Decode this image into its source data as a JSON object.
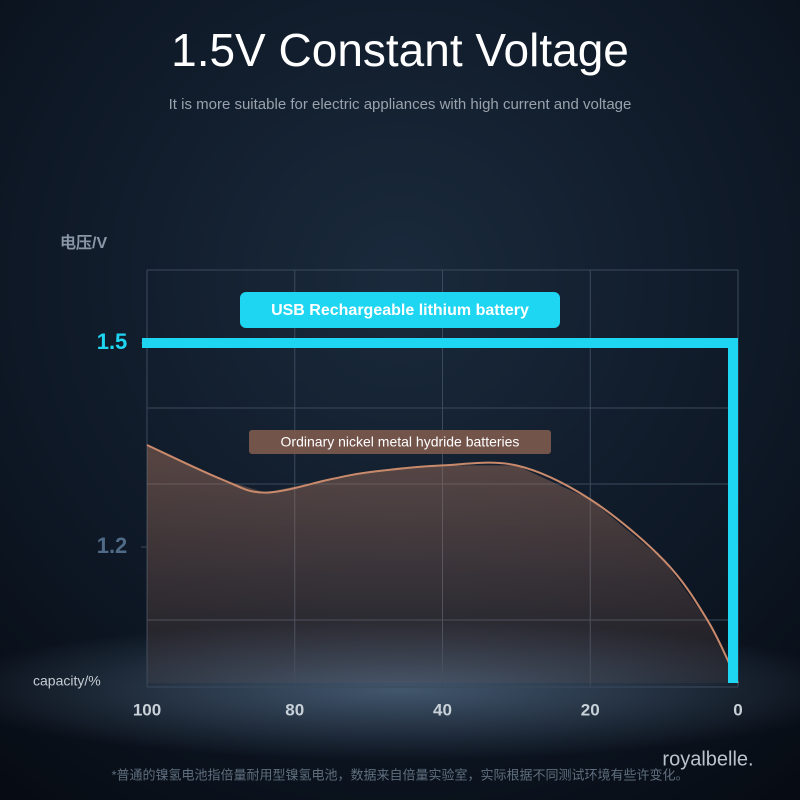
{
  "chart_data": {
    "type": "line",
    "title": "1.5V Constant Voltage",
    "subtitle": "It is more suitable for electric appliances with high current and voltage",
    "y_label": "电压/V",
    "x_label": "capacity/%",
    "xlim": [
      100,
      0
    ],
    "xticks": [
      100,
      80,
      40,
      20,
      0
    ],
    "ylim": [
      1.0,
      1.6
    ],
    "yticks": [
      1.2,
      1.5
    ],
    "series": [
      {
        "name": "USB Rechargeable lithium battery",
        "color": "#1fd6f2",
        "x": [
          100,
          0,
          0
        ],
        "values": [
          1.5,
          1.5,
          1.0
        ]
      },
      {
        "name": "Ordinary nickel metal hydride batteries",
        "color": "#c98a6c",
        "x": [
          100,
          90,
          84,
          70,
          60,
          40,
          30,
          20,
          10,
          4,
          0
        ],
        "values": [
          1.35,
          1.3,
          1.28,
          1.3,
          1.31,
          1.32,
          1.32,
          1.27,
          1.18,
          1.09,
          1.0
        ]
      }
    ],
    "footnote": "*普通的镍氢电池指倍量耐用型镍氢电池，数据来自倍量实验室，实际根据不同测试环境有些许变化。",
    "watermark": "royalbelle."
  }
}
